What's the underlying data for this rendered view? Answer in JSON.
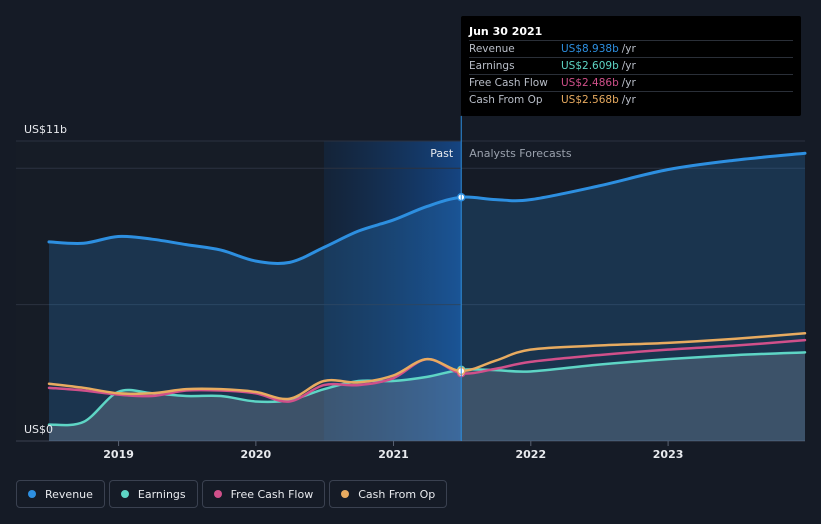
{
  "chart_data": {
    "type": "area",
    "ylabel_top": "US$11b",
    "ylabel_bottom": "US$0",
    "ylim": [
      0,
      11
    ],
    "x_ticks": [
      "2019",
      "2020",
      "2021",
      "2022",
      "2023"
    ],
    "past_label": "Past",
    "forecast_label": "Analysts Forecasts",
    "divider_x": "2021-06-30",
    "series": [
      {
        "name": "Revenue",
        "color": "#2d8fe0",
        "x": [
          "2018-06-30",
          "2018-09-30",
          "2018-12-31",
          "2019-03-31",
          "2019-06-30",
          "2019-09-30",
          "2019-12-31",
          "2020-03-31",
          "2020-06-30",
          "2020-09-30",
          "2020-12-31",
          "2021-03-31",
          "2021-06-30",
          "2021-09-30",
          "2021-12-31",
          "2022-06-30",
          "2022-12-31",
          "2023-06-30",
          "2023-12-31"
        ],
        "values": [
          7.3,
          7.25,
          7.5,
          7.4,
          7.2,
          7.0,
          6.6,
          6.55,
          7.1,
          7.7,
          8.1,
          8.6,
          8.938,
          8.85,
          8.85,
          9.35,
          9.95,
          10.3,
          10.55
        ]
      },
      {
        "name": "Earnings",
        "color": "#5ed5c5",
        "x": [
          "2018-06-30",
          "2018-09-30",
          "2018-12-31",
          "2019-03-31",
          "2019-06-30",
          "2019-09-30",
          "2019-12-31",
          "2020-03-31",
          "2020-06-30",
          "2020-09-30",
          "2020-12-31",
          "2021-03-31",
          "2021-06-30",
          "2021-09-30",
          "2021-12-31",
          "2022-06-30",
          "2022-12-31",
          "2023-06-30",
          "2023-12-31"
        ],
        "values": [
          0.6,
          0.7,
          1.8,
          1.75,
          1.65,
          1.65,
          1.45,
          1.5,
          1.9,
          2.2,
          2.2,
          2.35,
          2.609,
          2.6,
          2.55,
          2.8,
          3.0,
          3.15,
          3.25
        ]
      },
      {
        "name": "Free Cash Flow",
        "color": "#d0508a",
        "x": [
          "2018-06-30",
          "2018-09-30",
          "2018-12-31",
          "2019-03-31",
          "2019-06-30",
          "2019-09-30",
          "2019-12-31",
          "2020-03-31",
          "2020-06-30",
          "2020-09-30",
          "2020-12-31",
          "2021-03-31",
          "2021-06-30",
          "2021-09-30",
          "2021-12-31",
          "2022-06-30",
          "2022-12-31",
          "2023-06-30",
          "2023-12-31"
        ],
        "values": [
          1.95,
          1.85,
          1.7,
          1.65,
          1.85,
          1.85,
          1.75,
          1.45,
          2.05,
          2.05,
          2.3,
          3.0,
          2.486,
          2.65,
          2.9,
          3.15,
          3.35,
          3.5,
          3.7
        ]
      },
      {
        "name": "Cash From Op",
        "color": "#e8ab60",
        "x": [
          "2018-06-30",
          "2018-09-30",
          "2018-12-31",
          "2019-03-31",
          "2019-06-30",
          "2019-09-30",
          "2019-12-31",
          "2020-03-31",
          "2020-06-30",
          "2020-09-30",
          "2020-12-31",
          "2021-03-31",
          "2021-06-30",
          "2021-09-30",
          "2021-12-31",
          "2022-06-30",
          "2022-12-31",
          "2023-06-30",
          "2023-12-31"
        ],
        "values": [
          2.1,
          1.95,
          1.75,
          1.75,
          1.9,
          1.9,
          1.8,
          1.55,
          2.2,
          2.15,
          2.4,
          3.0,
          2.568,
          2.95,
          3.35,
          3.5,
          3.6,
          3.75,
          3.95
        ]
      }
    ]
  },
  "tooltip": {
    "date": "Jun 30 2021",
    "rows": [
      {
        "name": "Revenue",
        "value": "US$8.938b",
        "unit": "/yr",
        "color": "#2d8fe0"
      },
      {
        "name": "Earnings",
        "value": "US$2.609b",
        "unit": "/yr",
        "color": "#5ed5c5"
      },
      {
        "name": "Free Cash Flow",
        "value": "US$2.486b",
        "unit": "/yr",
        "color": "#d0508a"
      },
      {
        "name": "Cash From Op",
        "value": "US$2.568b",
        "unit": "/yr",
        "color": "#e8ab60"
      }
    ]
  },
  "legend": [
    {
      "label": "Revenue",
      "color": "#2d8fe0"
    },
    {
      "label": "Earnings",
      "color": "#5ed5c5"
    },
    {
      "label": "Free Cash Flow",
      "color": "#d0508a"
    },
    {
      "label": "Cash From Op",
      "color": "#e8ab60"
    }
  ]
}
